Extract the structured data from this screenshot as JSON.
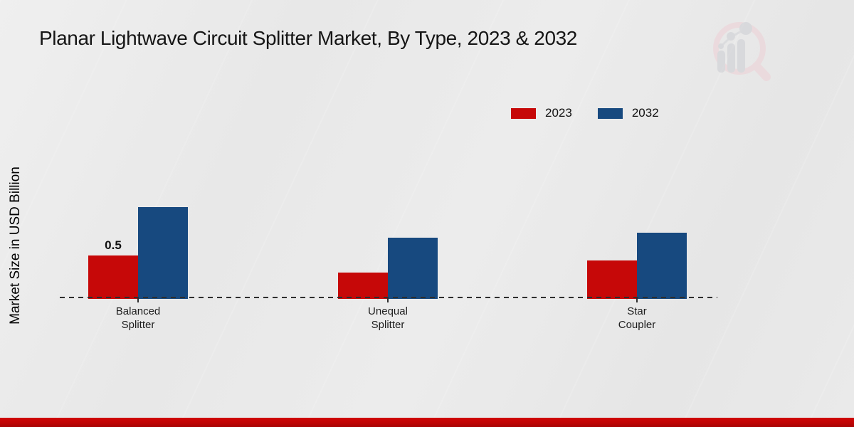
{
  "title": "Planar Lightwave Circuit Splitter Market, By Type, 2023 & 2032",
  "y_axis_label": "Market Size in USD Billion",
  "legend": {
    "position": "top-right",
    "items": [
      {
        "label": "2023",
        "color": "#c60808"
      },
      {
        "label": "2032",
        "color": "#17497f"
      }
    ]
  },
  "chart_data": {
    "type": "bar",
    "title": "Planar Lightwave Circuit Splitter Market, By Type, 2023 & 2032",
    "xlabel": "",
    "ylabel": "Market Size in USD Billion",
    "categories": [
      "Balanced Splitter",
      "Unequal Splitter",
      "Star Coupler"
    ],
    "series": [
      {
        "name": "2023",
        "color": "#c60808",
        "values": [
          0.5,
          0.3,
          0.44
        ]
      },
      {
        "name": "2032",
        "color": "#17497f",
        "values": [
          1.07,
          0.71,
          0.77
        ]
      }
    ],
    "annotations": [
      {
        "series": "2023",
        "category": "Balanced Splitter",
        "text": "0.5"
      }
    ],
    "ylim": [
      0,
      1.6
    ],
    "grid": false,
    "y_axis_ticks_visible": false,
    "baseline_style": "dashed",
    "legend_position": "top-right"
  },
  "colors": {
    "background": "#e9e9e9",
    "bottom_bar_red": "#c00505",
    "title_text": "#161616",
    "baseline": "#2e2e2e",
    "watermark_pink": "#edd2d7",
    "watermark_gray": "#cfd0d5"
  },
  "watermark": {
    "name": "magnifier-bar-chart-logo"
  }
}
